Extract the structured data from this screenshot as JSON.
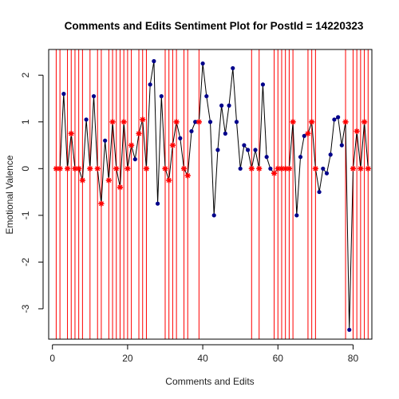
{
  "chart_data": {
    "type": "line",
    "title": "Comments and Edits Sentiment Plot for PostId =  14220323",
    "xlabel": "Comments and Edits",
    "ylabel": "Emotional Valence",
    "xlim": [
      -1,
      85
    ],
    "ylim": [
      -3.65,
      2.55
    ],
    "x_ticks": [
      0,
      20,
      40,
      60,
      80
    ],
    "y_ticks": [
      -3,
      -2,
      -1,
      0,
      1,
      2
    ],
    "grid": false,
    "colors": {
      "line": "#000000",
      "comment_point": "#00008b",
      "edit_point": "#ff0000",
      "edit_line": "#ff0000"
    },
    "series": [
      {
        "kind": "comments",
        "x": [
          3,
          9,
          11,
          14,
          22,
          26,
          27,
          28,
          29,
          34,
          37,
          38,
          40,
          41,
          42,
          43,
          44,
          45,
          46,
          47,
          48,
          49,
          50,
          51,
          52,
          54,
          56,
          57,
          58,
          65,
          66,
          67,
          71,
          72,
          73,
          74,
          75,
          76,
          77,
          79
        ],
        "y": [
          1.6,
          1.05,
          1.55,
          0.6,
          0.2,
          1.8,
          2.3,
          -0.75,
          1.55,
          0.65,
          0.8,
          1.0,
          2.25,
          1.55,
          1.0,
          -1.0,
          0.4,
          1.35,
          0.75,
          1.35,
          2.15,
          1.0,
          0.0,
          0.5,
          0.4,
          0.4,
          1.8,
          0.25,
          0.0,
          -1.0,
          0.25,
          0.7,
          -0.5,
          0.0,
          -0.1,
          0.3,
          1.05,
          1.1,
          0.5,
          -3.45
        ]
      },
      {
        "kind": "edits",
        "x": [
          1,
          2,
          4,
          5,
          6,
          7,
          8,
          10,
          12,
          13,
          15,
          16,
          17,
          18,
          19,
          20,
          21,
          23,
          24,
          25,
          30,
          31,
          32,
          33,
          35,
          36,
          39,
          53,
          55,
          59,
          60,
          61,
          62,
          63,
          64,
          68,
          69,
          70,
          78,
          80,
          81,
          82,
          83,
          84
        ],
        "y": [
          0.0,
          0.0,
          0.0,
          0.75,
          0.0,
          0.0,
          -0.25,
          0.0,
          0.0,
          -0.75,
          -0.25,
          1.0,
          0.0,
          -0.4,
          1.0,
          0.0,
          0.5,
          0.75,
          1.05,
          0.0,
          0.0,
          -0.25,
          0.5,
          1.0,
          0.0,
          -0.15,
          1.0,
          0.0,
          0.0,
          -0.1,
          0.0,
          0.0,
          0.0,
          0.0,
          1.0,
          0.75,
          1.0,
          0.0,
          1.0,
          0.0,
          0.8,
          0.0,
          1.0,
          0.0
        ]
      }
    ],
    "edit_markers_x": [
      1,
      2,
      4,
      5,
      6,
      7,
      8,
      10,
      12,
      13,
      15,
      16,
      17,
      18,
      19,
      20,
      21,
      23,
      24,
      25,
      30,
      31,
      32,
      33,
      35,
      36,
      39,
      53,
      55,
      59,
      60,
      61,
      62,
      63,
      64,
      68,
      69,
      70,
      78,
      80,
      81,
      82,
      83,
      84
    ]
  }
}
